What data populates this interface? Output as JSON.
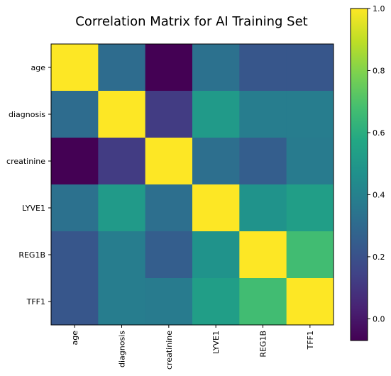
{
  "chart_data": {
    "type": "heatmap",
    "title": "Correlation Matrix for AI Training Set",
    "xlabel": "",
    "ylabel": "",
    "x_labels": [
      "age",
      "diagnosis",
      "creatinine",
      "LYVE1",
      "REG1B",
      "TFF1"
    ],
    "y_labels": [
      "age",
      "diagnosis",
      "creatinine",
      "LYVE1",
      "REG1B",
      "TFF1"
    ],
    "values": [
      [
        1.0,
        0.31,
        -0.07,
        0.33,
        0.22,
        0.22
      ],
      [
        0.31,
        1.0,
        0.12,
        0.51,
        0.38,
        0.38
      ],
      [
        -0.07,
        0.12,
        1.0,
        0.32,
        0.25,
        0.37
      ],
      [
        0.33,
        0.51,
        0.32,
        1.0,
        0.48,
        0.53
      ],
      [
        0.22,
        0.38,
        0.25,
        0.48,
        1.0,
        0.67
      ],
      [
        0.22,
        0.38,
        0.37,
        0.53,
        0.67,
        1.0
      ]
    ],
    "colormap": "viridis",
    "vmin": -0.07,
    "vmax": 1.0,
    "colorbar_ticks": [
      "0.0",
      "0.2",
      "0.4",
      "0.6",
      "0.8",
      "1.0"
    ],
    "colorbar_tick_values": [
      0.0,
      0.2,
      0.4,
      0.6,
      0.8,
      1.0
    ],
    "grid": false,
    "legend": "colorbar-right"
  }
}
